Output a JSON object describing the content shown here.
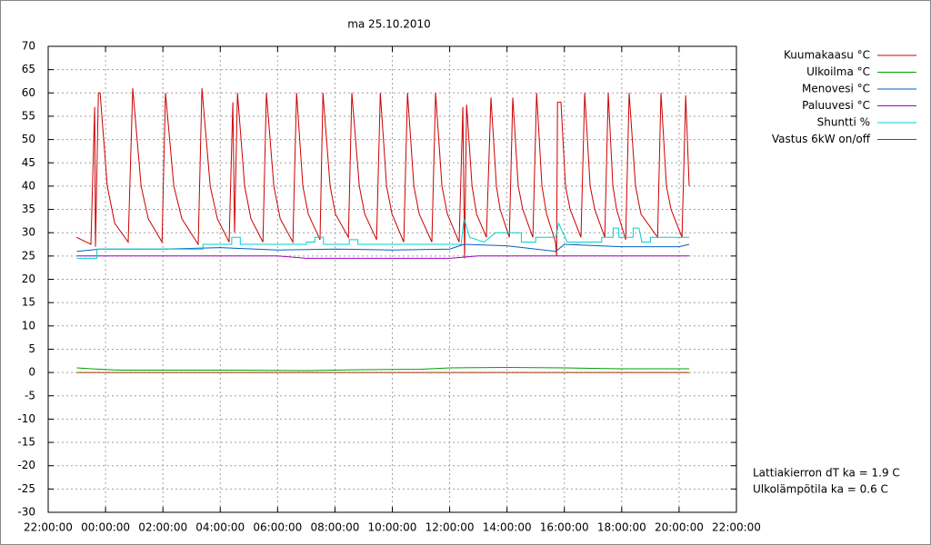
{
  "chart_data": {
    "type": "line",
    "title": "ma 25.10.2010",
    "xlim": [
      -2,
      22
    ],
    "ylim": [
      -30,
      70
    ],
    "xticks": [
      {
        "value": -2,
        "label": "22:00:00"
      },
      {
        "value": 0,
        "label": "00:00:00"
      },
      {
        "value": 2,
        "label": "02:00:00"
      },
      {
        "value": 4,
        "label": "04:00:00"
      },
      {
        "value": 6,
        "label": "06:00:00"
      },
      {
        "value": 8,
        "label": "08:00:00"
      },
      {
        "value": 10,
        "label": "10:00:00"
      },
      {
        "value": 12,
        "label": "12:00:00"
      },
      {
        "value": 14,
        "label": "14:00:00"
      },
      {
        "value": 16,
        "label": "16:00:00"
      },
      {
        "value": 18,
        "label": "18:00:00"
      },
      {
        "value": 20,
        "label": "20:00:00"
      },
      {
        "value": 22,
        "label": "22:00:00"
      }
    ],
    "yticks": [
      -30,
      -25,
      -20,
      -15,
      -10,
      -5,
      0,
      5,
      10,
      15,
      20,
      25,
      30,
      35,
      40,
      45,
      50,
      55,
      60,
      65,
      70
    ],
    "grid": true,
    "legend": "right",
    "annotations": [
      "Lattiakierron dT ka = 1.9 C",
      "Ulkolämpötila ka = 0.6 C"
    ],
    "series": [
      {
        "name": "Kuumakaasu °C",
        "color": "#cc0000",
        "x": [
          -1.01,
          -0.51,
          -0.38,
          -0.35,
          -0.25,
          -0.19,
          0.06,
          0.32,
          0.79,
          0.95,
          1.24,
          1.49,
          1.97,
          2.09,
          2.38,
          2.66,
          3.23,
          3.36,
          3.65,
          3.9,
          4.31,
          4.44,
          4.5,
          4.6,
          4.85,
          5.07,
          5.49,
          5.61,
          5.87,
          6.09,
          6.53,
          6.66,
          6.88,
          7.07,
          7.48,
          7.58,
          7.83,
          8.02,
          8.47,
          8.59,
          8.85,
          9.04,
          9.45,
          9.58,
          9.8,
          9.99,
          10.4,
          10.53,
          10.75,
          10.94,
          11.38,
          11.51,
          11.73,
          11.92,
          12.33,
          12.46,
          12.52,
          12.59,
          12.78,
          12.94,
          13.28,
          13.44,
          13.63,
          13.76,
          14.08,
          14.2,
          14.39,
          14.55,
          14.9,
          15.03,
          15.22,
          15.38,
          15.69,
          15.73,
          15.76,
          15.88,
          16.04,
          16.2,
          16.58,
          16.71,
          16.9,
          17.06,
          17.41,
          17.53,
          17.69,
          17.82,
          18.14,
          18.26,
          18.48,
          18.67,
          19.25,
          19.37,
          19.56,
          19.72,
          20.1,
          20.23,
          20.35
        ],
        "values": [
          29,
          27.5,
          57,
          27,
          60,
          60,
          40,
          32,
          28,
          61,
          40,
          33,
          28,
          60,
          40,
          33,
          27.5,
          61,
          40,
          33,
          28,
          58,
          30,
          60,
          40,
          33,
          28,
          60,
          40,
          33,
          28,
          60,
          40,
          34,
          28.5,
          60,
          40,
          34,
          29,
          60,
          40,
          34,
          28.5,
          60,
          40,
          34,
          28,
          60,
          40,
          34,
          28,
          60,
          40,
          34,
          28,
          57,
          24.5,
          57.5,
          40,
          34,
          29,
          59,
          40,
          35,
          29,
          59,
          40,
          35,
          29,
          60,
          40,
          34,
          28,
          25,
          58,
          58,
          40,
          35,
          29,
          60,
          40,
          35,
          29,
          60,
          40,
          35,
          28.5,
          60,
          40,
          34,
          29,
          60,
          40,
          35,
          29,
          59.5,
          40
        ]
      },
      {
        "name": "Ulkoilma °C",
        "color": "#00a000",
        "x": [
          -1,
          -0.5,
          0.5,
          4,
          7,
          9,
          11,
          12,
          14,
          16,
          18,
          20.35
        ],
        "values": [
          1,
          0.8,
          0.5,
          0.5,
          0.4,
          0.6,
          0.7,
          1,
          1.1,
          1,
          0.8,
          0.8
        ]
      },
      {
        "name": "Menovesi °C",
        "color": "#0060c0",
        "x": [
          -1,
          -0.2,
          2,
          4,
          6,
          8,
          10,
          12,
          12.5,
          14,
          15.7,
          16,
          18,
          20,
          20.35
        ],
        "values": [
          26,
          26.5,
          26.5,
          26.8,
          26.3,
          26.5,
          26.3,
          26.5,
          27.5,
          27.2,
          26,
          27.5,
          27,
          27,
          27.5
        ]
      },
      {
        "name": "Paluuvesi °C",
        "color": "#a000c0",
        "x": [
          -1,
          6,
          7,
          12,
          13,
          20.35
        ],
        "values": [
          25,
          25,
          24.5,
          24.5,
          25,
          25
        ]
      },
      {
        "name": "Shuntti %",
        "color": "#00d0d0",
        "x": [
          -1,
          -0.3,
          -0.3,
          3.4,
          3.4,
          4.4,
          4.4,
          4.7,
          4.7,
          7,
          7,
          7.3,
          7.3,
          7.6,
          7.6,
          8.5,
          8.5,
          8.8,
          8.8,
          12.4,
          12.5,
          12.7,
          13.2,
          13.6,
          14.5,
          14.5,
          15,
          15,
          15.7,
          15.8,
          16.1,
          17.3,
          17.3,
          17.7,
          17.7,
          17.9,
          17.9,
          18.4,
          18.4,
          18.6,
          18.7,
          19,
          19,
          20.35
        ],
        "values": [
          24.5,
          24.5,
          26.5,
          26.5,
          27.5,
          27.5,
          29,
          29,
          27.5,
          27.5,
          28,
          28,
          29,
          29,
          27.5,
          27.5,
          28.5,
          28.5,
          27.5,
          27.5,
          33,
          29,
          28,
          30,
          30,
          28,
          28,
          29,
          29,
          32,
          28,
          28,
          29,
          29,
          31,
          31,
          29,
          29,
          31,
          31,
          28,
          28,
          29,
          29
        ]
      },
      {
        "name": "Vastus 6kW on/off",
        "color": "#a03000",
        "x": [
          -1,
          20.35
        ],
        "values": [
          0,
          0
        ]
      }
    ]
  }
}
